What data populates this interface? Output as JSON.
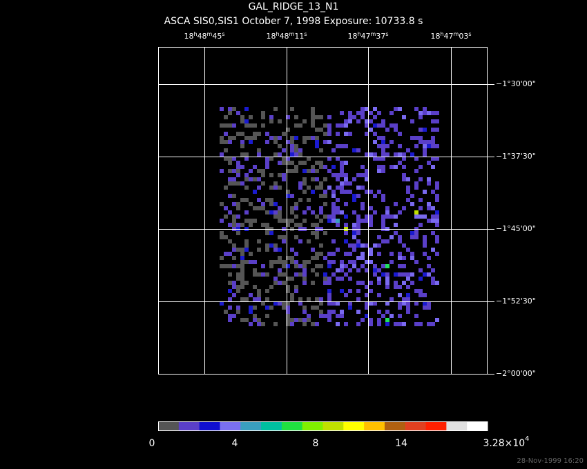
{
  "header": {
    "title": "GAL_RIDGE_13_N1",
    "subtitle": "ASCA SIS0,SIS1 October 7, 1998 Exposure: 10733.8 s"
  },
  "ra_labels": [
    [
      "18",
      "h",
      "48",
      "m",
      "45",
      "s"
    ],
    [
      "18",
      "h",
      "48",
      "m",
      "11",
      "s"
    ],
    [
      "18",
      "h",
      "47",
      "m",
      "37",
      "s"
    ],
    [
      "18",
      "h",
      "47",
      "m",
      "03",
      "s"
    ]
  ],
  "dec_labels": [
    "−1°30'00\"",
    "−1°37'30\"",
    "−1°45'00\"",
    "−1°52'30\"",
    "−2°00'00\""
  ],
  "colorbar": {
    "labels": [
      [
        "0"
      ],
      [
        "4"
      ],
      [
        "8"
      ],
      [
        "14"
      ],
      [
        "3.28×10",
        "4"
      ]
    ]
  },
  "footer": {
    "timestamp": "28-Nov-1999 16:20"
  }
}
